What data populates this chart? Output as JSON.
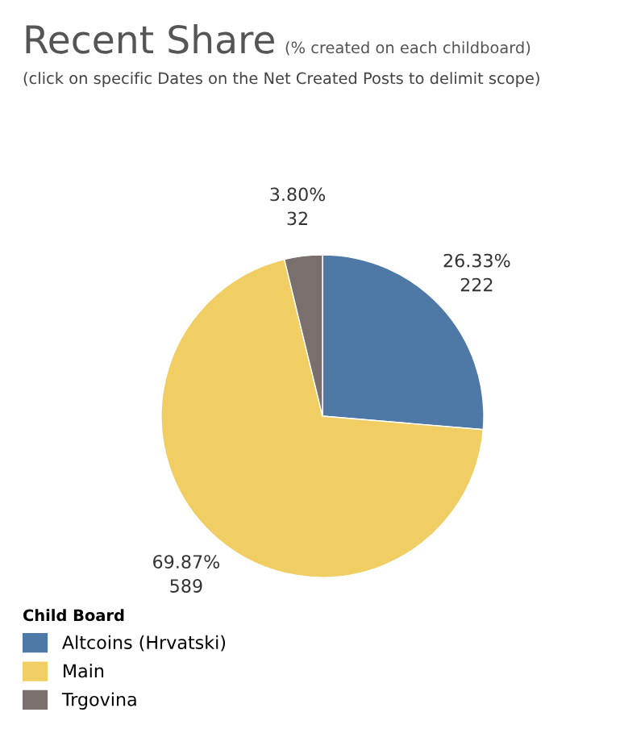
{
  "chart_data": {
    "type": "pie",
    "title": "Recent Share",
    "subtitle": "(% created on each childboard)",
    "annotations": [
      "(click on specific Dates on the Net Created Posts to delimit scope)"
    ],
    "legend_title": "Child Board",
    "legend": "bottom left",
    "categories": [
      "Altcoins (Hrvatski)",
      "Main",
      "Trgovina"
    ],
    "values": [
      222,
      589,
      32
    ],
    "value_labels": [
      "26.33%\n222",
      "69.87%\n589",
      "3.80%\n32"
    ],
    "colors": [
      "#4e79a7",
      "#f1ce63",
      "#79706e"
    ]
  }
}
